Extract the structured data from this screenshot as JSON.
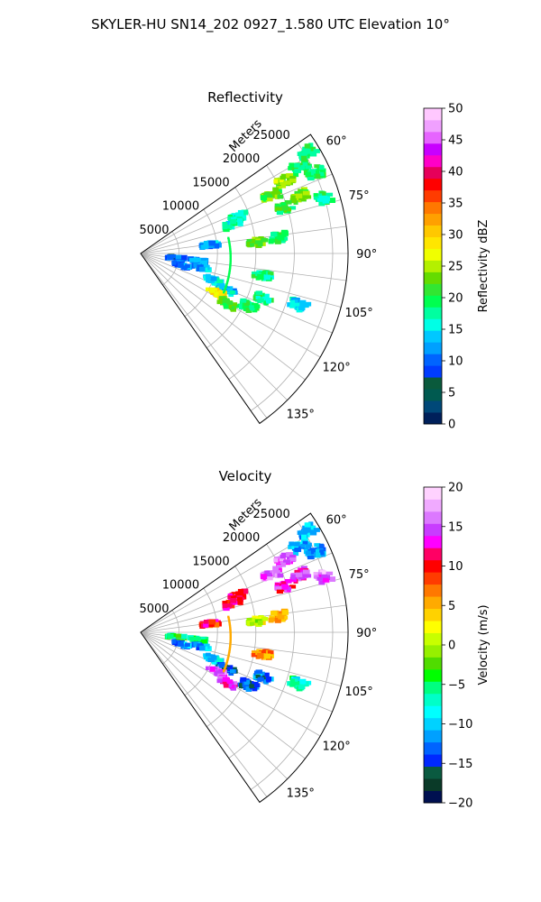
{
  "figure": {
    "title": "SKYLER-HU  SN14_202  0927_1.580 UTC Elevation 10°"
  },
  "colors": {
    "grid": "#b0b0b0",
    "reflectivity_scale": [
      "#00205a",
      "#004878",
      "#005a50",
      "#0a5a3c",
      "#003cff",
      "#0064ff",
      "#00a0ff",
      "#00c8ff",
      "#00ffe6",
      "#00ffa0",
      "#00ff50",
      "#32e632",
      "#64dc00",
      "#b4f000",
      "#f0ff00",
      "#ffe600",
      "#ffc800",
      "#ffa000",
      "#ff7800",
      "#ff3c00",
      "#ff0000",
      "#e6005a",
      "#ff00c8",
      "#c800ff",
      "#e664ff",
      "#f0a0ff",
      "#ffc8ff"
    ],
    "velocity_scale": [
      "#001050",
      "#0a3a28",
      "#0a5a40",
      "#0028ff",
      "#0064ff",
      "#00a0ff",
      "#00d2ff",
      "#00ffff",
      "#00ffc8",
      "#00ff80",
      "#00ff00",
      "#50dc00",
      "#96f000",
      "#c8ff00",
      "#ffff00",
      "#ffd200",
      "#ffaa00",
      "#ff7800",
      "#ff3c00",
      "#ff0000",
      "#ff0064",
      "#ff00ff",
      "#c83cff",
      "#dc78ff",
      "#f0aaff",
      "#ffd2ff"
    ]
  },
  "chart_data": [
    {
      "type": "heatmap",
      "projection": "polar-sector",
      "title": "Reflectivity",
      "radial_label": "Meters",
      "radial_ticks": [
        5000,
        10000,
        15000,
        20000,
        25000
      ],
      "radial_tick_labels": [
        "5000",
        "10000",
        "15000",
        "20000",
        "25000"
      ],
      "rlim": [
        0,
        27000
      ],
      "angle_ticks": [
        60,
        75,
        90,
        105,
        120,
        135
      ],
      "angle_tick_labels": [
        "60°",
        "75°",
        "90°",
        "105°",
        "120°",
        "135°"
      ],
      "angle_range": [
        55,
        145
      ],
      "grid": true,
      "colorbar": {
        "label": "Reflectivity dBZ",
        "range": [
          0,
          50
        ],
        "ticks": [
          0,
          5,
          10,
          15,
          20,
          25,
          30,
          35,
          40,
          45,
          50
        ],
        "tick_labels": [
          "0",
          "5",
          "10",
          "15",
          "20",
          "25",
          "30",
          "35",
          "40",
          "45",
          "50"
        ]
      },
      "echo_regions": [
        {
          "azimuth": 58,
          "range_m": 25400,
          "value": 18
        },
        {
          "azimuth": 61,
          "range_m": 23500,
          "value": 20
        },
        {
          "azimuth": 63,
          "range_m": 21000,
          "value": 24
        },
        {
          "azimuth": 66,
          "range_m": 18500,
          "value": 22
        },
        {
          "azimuth": 65,
          "range_m": 25000,
          "value": 20
        },
        {
          "azimuth": 70,
          "range_m": 22000,
          "value": 23
        },
        {
          "azimuth": 72,
          "range_m": 19500,
          "value": 21
        },
        {
          "azimuth": 73,
          "range_m": 25000,
          "value": 18
        },
        {
          "azimuth": 69,
          "range_m": 13500,
          "value": 16
        },
        {
          "azimuth": 72,
          "range_m": 12500,
          "value": 17
        },
        {
          "azimuth": 82,
          "range_m": 9000,
          "value": 12
        },
        {
          "azimuth": 84,
          "range_m": 15000,
          "value": 23
        },
        {
          "azimuth": 83,
          "range_m": 18000,
          "value": 20
        },
        {
          "azimuth": 96,
          "range_m": 4500,
          "value": 10
        },
        {
          "azimuth": 97,
          "range_m": 7500,
          "value": 12
        },
        {
          "azimuth": 103,
          "range_m": 8000,
          "value": 13
        },
        {
          "azimuth": 106,
          "range_m": 5500,
          "value": 11
        },
        {
          "azimuth": 110,
          "range_m": 10000,
          "value": 15
        },
        {
          "azimuth": 113,
          "range_m": 12000,
          "value": 14
        },
        {
          "azimuth": 100,
          "range_m": 16000,
          "value": 18
        },
        {
          "azimuth": 117,
          "range_m": 11000,
          "value": 28
        },
        {
          "azimuth": 120,
          "range_m": 13000,
          "value": 22
        },
        {
          "azimuth": 116,
          "range_m": 15500,
          "value": 19
        },
        {
          "azimuth": 110,
          "range_m": 17000,
          "value": 18
        },
        {
          "azimuth": 108,
          "range_m": 21500,
          "value": 14
        }
      ]
    },
    {
      "type": "heatmap",
      "projection": "polar-sector",
      "title": "Velocity",
      "radial_label": "Meters",
      "radial_ticks": [
        5000,
        10000,
        15000,
        20000,
        25000
      ],
      "radial_tick_labels": [
        "5000",
        "10000",
        "15000",
        "20000",
        "25000"
      ],
      "rlim": [
        0,
        27000
      ],
      "angle_ticks": [
        60,
        75,
        90,
        105,
        120,
        135
      ],
      "angle_tick_labels": [
        "60°",
        "75°",
        "90°",
        "105°",
        "120°",
        "135°"
      ],
      "angle_range": [
        55,
        145
      ],
      "grid": true,
      "colorbar": {
        "label": "Velocity (m/s)",
        "range": [
          -20,
          20
        ],
        "ticks": [
          -20,
          -15,
          -10,
          -5,
          0,
          5,
          10,
          15,
          20
        ],
        "tick_labels": [
          "−20",
          "−15",
          "−10",
          "−5",
          "0",
          "5",
          "10",
          "15",
          "20"
        ]
      },
      "echo_regions": [
        {
          "azimuth": 58,
          "range_m": 25400,
          "value": -11
        },
        {
          "azimuth": 61,
          "range_m": 23500,
          "value": -10
        },
        {
          "azimuth": 63,
          "range_m": 21000,
          "value": 15
        },
        {
          "azimuth": 66,
          "range_m": 18500,
          "value": 15
        },
        {
          "azimuth": 65,
          "range_m": 25000,
          "value": -11
        },
        {
          "azimuth": 70,
          "range_m": 22000,
          "value": 14
        },
        {
          "azimuth": 72,
          "range_m": 19500,
          "value": 13
        },
        {
          "azimuth": 73,
          "range_m": 25000,
          "value": 16
        },
        {
          "azimuth": 69,
          "range_m": 13500,
          "value": 10
        },
        {
          "azimuth": 72,
          "range_m": 12500,
          "value": 11
        },
        {
          "azimuth": 82,
          "range_m": 9000,
          "value": 10
        },
        {
          "azimuth": 84,
          "range_m": 15000,
          "value": 1
        },
        {
          "azimuth": 83,
          "range_m": 18000,
          "value": 6
        },
        {
          "azimuth": 96,
          "range_m": 4500,
          "value": -5
        },
        {
          "azimuth": 97,
          "range_m": 7500,
          "value": -6
        },
        {
          "azimuth": 103,
          "range_m": 8000,
          "value": -11
        },
        {
          "azimuth": 106,
          "range_m": 5500,
          "value": -12
        },
        {
          "azimuth": 110,
          "range_m": 10000,
          "value": -10
        },
        {
          "azimuth": 113,
          "range_m": 12000,
          "value": -14
        },
        {
          "azimuth": 100,
          "range_m": 16000,
          "value": 6
        },
        {
          "azimuth": 117,
          "range_m": 11000,
          "value": 15
        },
        {
          "azimuth": 120,
          "range_m": 13000,
          "value": 14
        },
        {
          "azimuth": 116,
          "range_m": 15500,
          "value": -14
        },
        {
          "azimuth": 110,
          "range_m": 17000,
          "value": -13
        },
        {
          "azimuth": 108,
          "range_m": 21500,
          "value": -7
        }
      ]
    }
  ]
}
